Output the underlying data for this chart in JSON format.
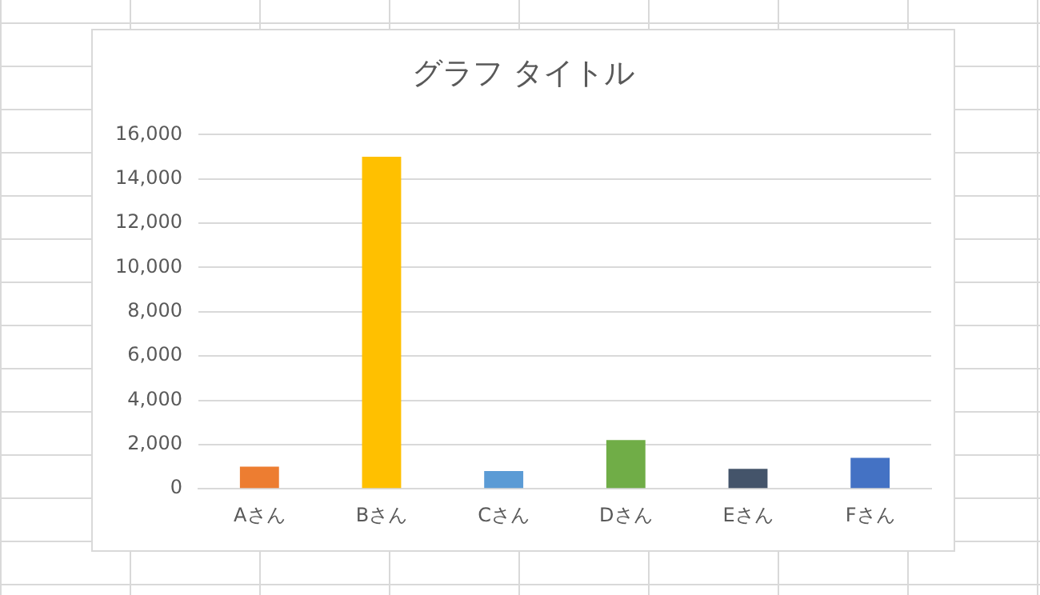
{
  "chart_data": {
    "type": "bar",
    "title": "グラフ タイトル",
    "categories": [
      "Aさん",
      "Bさん",
      "Cさん",
      "Dさん",
      "Eさん",
      "Fさん"
    ],
    "values": [
      1000,
      15000,
      800,
      2200,
      900,
      1400
    ],
    "colors": [
      "#ed7d31",
      "#ffc000",
      "#5b9bd5",
      "#70ad47",
      "#44546a",
      "#4472c4"
    ],
    "ylim": [
      0,
      16000
    ],
    "yticks": [
      {
        "value": 0,
        "label": "0"
      },
      {
        "value": 2000,
        "label": "2,000"
      },
      {
        "value": 4000,
        "label": "4,000"
      },
      {
        "value": 6000,
        "label": "6,000"
      },
      {
        "value": 8000,
        "label": "8,000"
      },
      {
        "value": 10000,
        "label": "10,000"
      },
      {
        "value": 12000,
        "label": "12,000"
      },
      {
        "value": 14000,
        "label": "14,000"
      },
      {
        "value": 16000,
        "label": "16,000"
      }
    ],
    "grid": "y",
    "legend": false
  }
}
